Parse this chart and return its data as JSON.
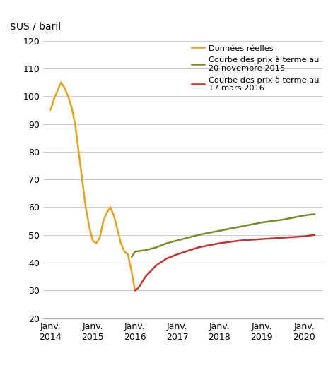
{
  "ylabel_title": "$US / baril",
  "ylim": [
    20,
    120
  ],
  "yticks": [
    20,
    30,
    40,
    50,
    60,
    70,
    80,
    90,
    100,
    110,
    120
  ],
  "xtick_labels": [
    "Janv.\n2014",
    "Janv.\n2015",
    "Janv.\n2016",
    "Janv.\n2017",
    "Janv.\n2018",
    "Janv.\n2019",
    "Janv.\n2020"
  ],
  "xtick_positions": [
    2014.0,
    2015.0,
    2016.0,
    2017.0,
    2018.0,
    2019.0,
    2020.0
  ],
  "real_data_color": "#E8A020",
  "curve1_color": "#7A8C2A",
  "curve2_color": "#C03530",
  "legend_label_real": "Données réelles",
  "legend_label_curve1": "Courbe des prix à terme au\n20 novembre 2015",
  "legend_label_curve2": "Courbe des prix à terme au\n17 mars 2016",
  "background_color": "#ffffff",
  "grid_color": "#cccccc",
  "real_data_x": [
    2014.0,
    2014.083,
    2014.167,
    2014.25,
    2014.333,
    2014.417,
    2014.5,
    2014.583,
    2014.667,
    2014.75,
    2014.833,
    2014.917,
    2015.0,
    2015.083,
    2015.167,
    2015.25,
    2015.333,
    2015.417,
    2015.5,
    2015.583,
    2015.667,
    2015.75,
    2015.833,
    2015.917,
    2016.0
  ],
  "real_data_y": [
    95,
    99,
    102,
    105,
    103,
    100,
    96,
    90,
    80,
    70,
    60,
    53,
    48,
    47,
    49,
    55,
    58,
    60,
    57,
    52,
    47,
    44,
    43,
    37,
    30
  ],
  "curve1_x": [
    2015.917,
    2016.0,
    2016.25,
    2016.5,
    2016.75,
    2017.0,
    2017.5,
    2018.0,
    2018.5,
    2019.0,
    2019.5,
    2020.0,
    2020.25
  ],
  "curve1_y": [
    42,
    44,
    44.5,
    45.5,
    47,
    48,
    50,
    51.5,
    53,
    54.5,
    55.5,
    57,
    57.5
  ],
  "curve2_x": [
    2016.0,
    2016.083,
    2016.25,
    2016.5,
    2016.75,
    2017.0,
    2017.5,
    2018.0,
    2018.5,
    2019.0,
    2019.5,
    2020.0,
    2020.25
  ],
  "curve2_y": [
    30,
    31,
    35,
    39,
    41.5,
    43,
    45.5,
    47,
    48,
    48.5,
    49,
    49.5,
    50
  ]
}
